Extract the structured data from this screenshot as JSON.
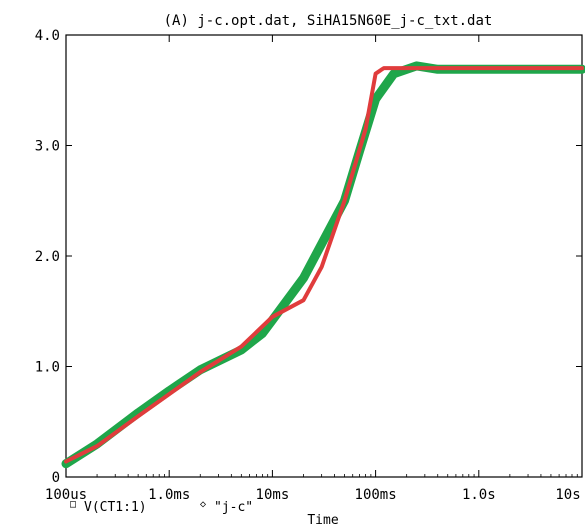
{
  "chart_data": {
    "type": "line",
    "title": "(A) j-c.opt.dat, SiHA15N60E_j-c_txt.dat",
    "xlabel": "Time",
    "ylabel": "",
    "x_scale": "log",
    "xlim": [
      "100us",
      "10s"
    ],
    "ylim": [
      0,
      4.0
    ],
    "x_ticks": [
      "100us",
      "1.0ms",
      "10ms",
      "100ms",
      "1.0s",
      "10s"
    ],
    "y_ticks": [
      "0",
      "1.0",
      "2.0",
      "3.0",
      "4.0"
    ],
    "grid": false,
    "legend_position": "bottom-left",
    "series": [
      {
        "name": "V(CT1:1)",
        "color": "#1fa64a",
        "marker": "□",
        "points": [
          [
            "100us",
            0.12
          ],
          [
            "200us",
            0.3
          ],
          [
            "500us",
            0.58
          ],
          [
            "1ms",
            0.78
          ],
          [
            "2ms",
            0.97
          ],
          [
            "5ms",
            1.15
          ],
          [
            "8ms",
            1.3
          ],
          [
            "10ms",
            1.42
          ],
          [
            "20ms",
            1.8
          ],
          [
            "50ms",
            2.5
          ],
          [
            "70ms",
            2.95
          ],
          [
            "100ms",
            3.42
          ],
          [
            "150ms",
            3.65
          ],
          [
            "250ms",
            3.72
          ],
          [
            "400ms",
            3.69
          ],
          [
            "10s",
            3.69
          ]
        ]
      },
      {
        "name": "\"j-c\"",
        "color": "#e03c3c",
        "marker": "◇",
        "points": [
          [
            "100us",
            0.14
          ],
          [
            "200us",
            0.28
          ],
          [
            "500us",
            0.55
          ],
          [
            "1ms",
            0.75
          ],
          [
            "2ms",
            0.95
          ],
          [
            "5ms",
            1.18
          ],
          [
            "10ms",
            1.45
          ],
          [
            "20ms",
            1.6
          ],
          [
            "30ms",
            1.9
          ],
          [
            "50ms",
            2.5
          ],
          [
            "80ms",
            3.15
          ],
          [
            "100ms",
            3.65
          ],
          [
            "120ms",
            3.7
          ],
          [
            "10s",
            3.7
          ]
        ]
      }
    ]
  }
}
